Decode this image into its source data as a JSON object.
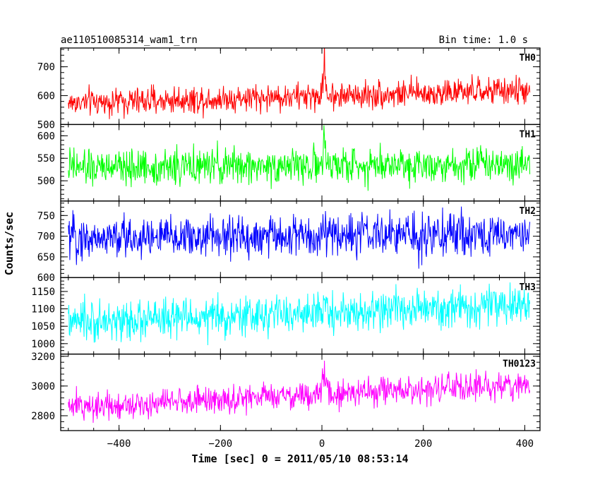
{
  "header": {
    "title": "ae110510085314_wam1_trn",
    "bin_time": "Bin time: 1.0 s"
  },
  "chart_data": {
    "type": "line",
    "title": "ae110510085314_wam1_trn",
    "subtitle": "Bin time: 1.0 s",
    "xlabel": "Time [sec] 0 = 2011/05/10 08:53:14",
    "ylabel": "Counts/sec",
    "xlim": [
      -515,
      430
    ],
    "xticks": [
      -400,
      -200,
      0,
      200,
      400
    ],
    "x_range": [
      -500,
      410
    ],
    "grid": false,
    "legend": "none",
    "panels": [
      {
        "name": "TH0",
        "color": "#ff0000",
        "ylim": [
          500,
          765
        ],
        "yticks": [
          500,
          600,
          700
        ],
        "base_start": 575,
        "base_end": 618,
        "noise": 24,
        "spike": {
          "x": 5,
          "peak": 765
        }
      },
      {
        "name": "TH1",
        "color": "#00ff00",
        "ylim": [
          455,
          625
        ],
        "yticks": [
          500,
          550,
          600
        ],
        "base_start": 528,
        "base_end": 540,
        "noise": 20,
        "spike": {
          "x": 5,
          "peak": 595
        }
      },
      {
        "name": "TH2",
        "color": "#0000ff",
        "ylim": [
          600,
          785
        ],
        "yticks": [
          600,
          650,
          700,
          750
        ],
        "base_start": 695,
        "base_end": 705,
        "noise": 26,
        "spike": {
          "x": 5,
          "peak": 770
        }
      },
      {
        "name": "TH3",
        "color": "#00ffff",
        "ylim": [
          970,
          1190
        ],
        "yticks": [
          1000,
          1050,
          1100,
          1150
        ],
        "base_start": 1060,
        "base_end": 1110,
        "noise": 28,
        "spike": {
          "x": 5,
          "peak": 1150
        }
      },
      {
        "name": "TH0123",
        "color": "#ff00ff",
        "ylim": [
          2700,
          3215
        ],
        "yticks": [
          2800,
          3000,
          3200
        ],
        "base_start": 2860,
        "base_end": 3010,
        "noise": 48,
        "spike": {
          "x": 5,
          "peak": 3215
        }
      }
    ]
  }
}
